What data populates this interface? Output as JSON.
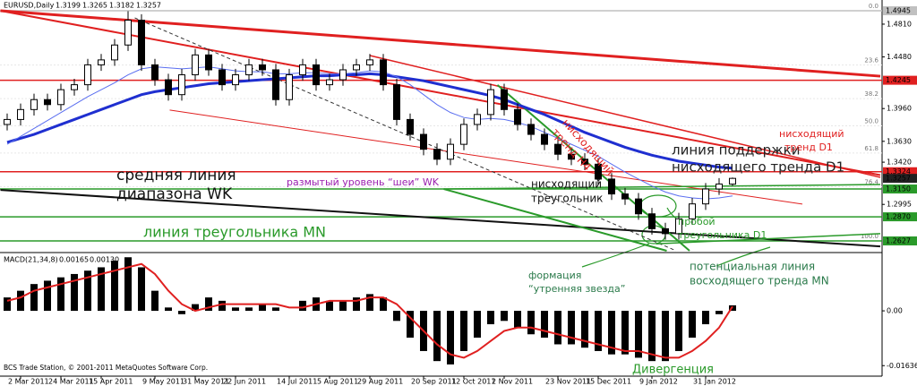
{
  "chart_data": {
    "type": "candlestick",
    "symbol": "EURUSD,Daily",
    "categories": [
      null,
      "2 Mar 2011",
      null,
      null,
      "24 Mar 2011",
      null,
      null,
      "15 Apr 2011",
      null,
      null,
      null,
      "9 May 2011",
      null,
      null,
      "31 May 2011",
      null,
      null,
      "22 Jun 2011",
      null,
      null,
      null,
      "14 Jul 2011",
      null,
      null,
      "5 Aug 2011",
      null,
      null,
      "29 Aug 2011",
      null,
      null,
      null,
      "20 Sep 2011",
      null,
      null,
      "12 Oct 2011",
      null,
      null,
      "2 Nov 2011",
      null,
      null,
      null,
      "23 Nov 2011",
      null,
      null,
      "15 Dec 2011",
      null,
      null,
      null,
      "9 Jan 2012",
      null,
      null,
      null,
      "31 Jan 2012",
      null,
      null
    ],
    "open": [
      1.38,
      1.385,
      1.395,
      1.405,
      1.4,
      1.415,
      1.42,
      1.44,
      1.445,
      1.46,
      1.485,
      1.44,
      1.425,
      1.41,
      1.43,
      1.45,
      1.435,
      1.42,
      1.43,
      1.44,
      1.435,
      1.405,
      1.43,
      1.44,
      1.42,
      1.425,
      1.435,
      1.44,
      1.445,
      1.42,
      1.385,
      1.37,
      1.355,
      1.345,
      1.36,
      1.38,
      1.39,
      1.415,
      1.395,
      1.38,
      1.37,
      1.36,
      1.35,
      1.345,
      1.34,
      1.325,
      1.31,
      1.305,
      1.29,
      1.275,
      1.27,
      1.285,
      1.3,
      1.315,
      1.3199
    ],
    "high": [
      1.391,
      1.401,
      1.411,
      1.411,
      1.421,
      1.426,
      1.446,
      1.451,
      1.466,
      1.494,
      1.491,
      1.446,
      1.431,
      1.436,
      1.456,
      1.456,
      1.441,
      1.436,
      1.446,
      1.446,
      1.441,
      1.436,
      1.446,
      1.446,
      1.431,
      1.441,
      1.446,
      1.451,
      1.451,
      1.426,
      1.391,
      1.376,
      1.361,
      1.366,
      1.386,
      1.396,
      1.421,
      1.421,
      1.401,
      1.386,
      1.376,
      1.366,
      1.356,
      1.351,
      1.346,
      1.331,
      1.316,
      1.311,
      1.296,
      1.281,
      1.291,
      1.306,
      1.321,
      1.326,
      1.3265
    ],
    "low": [
      1.374,
      1.379,
      1.389,
      1.394,
      1.394,
      1.409,
      1.414,
      1.434,
      1.439,
      1.454,
      1.434,
      1.419,
      1.404,
      1.404,
      1.424,
      1.429,
      1.414,
      1.414,
      1.424,
      1.429,
      1.399,
      1.399,
      1.424,
      1.414,
      1.414,
      1.419,
      1.429,
      1.434,
      1.414,
      1.379,
      1.364,
      1.349,
      1.339,
      1.339,
      1.354,
      1.374,
      1.384,
      1.389,
      1.374,
      1.364,
      1.354,
      1.344,
      1.339,
      1.334,
      1.319,
      1.304,
      1.299,
      1.284,
      1.269,
      1.264,
      1.264,
      1.279,
      1.294,
      1.309,
      1.3182
    ],
    "close": [
      1.385,
      1.395,
      1.405,
      1.4,
      1.415,
      1.42,
      1.44,
      1.445,
      1.46,
      1.485,
      1.44,
      1.425,
      1.41,
      1.43,
      1.45,
      1.435,
      1.42,
      1.43,
      1.44,
      1.435,
      1.405,
      1.43,
      1.44,
      1.42,
      1.425,
      1.435,
      1.44,
      1.445,
      1.42,
      1.385,
      1.37,
      1.355,
      1.345,
      1.36,
      1.38,
      1.39,
      1.415,
      1.395,
      1.38,
      1.37,
      1.36,
      1.35,
      1.345,
      1.34,
      1.325,
      1.31,
      1.305,
      1.29,
      1.275,
      1.27,
      1.285,
      1.3,
      1.315,
      1.32,
      1.3257
    ],
    "series": [
      {
        "color": "#1f2fd0",
        "width": 3,
        "values": [
          1.362,
          1.366,
          1.37,
          1.375,
          1.38,
          1.385,
          1.39,
          1.395,
          1.4,
          1.405,
          1.41,
          1.413,
          1.415,
          1.417,
          1.419,
          1.421,
          1.422,
          1.423,
          1.424,
          1.425,
          1.426,
          1.427,
          1.428,
          1.429,
          1.429,
          1.43,
          1.43,
          1.431,
          1.43,
          1.428,
          1.426,
          1.424,
          1.421,
          1.418,
          1.415,
          1.412,
          1.409,
          1.405,
          1.4,
          1.395,
          1.39,
          1.384,
          1.378,
          1.372,
          1.367,
          1.362,
          1.357,
          1.353,
          1.349,
          1.346,
          1.343,
          1.341,
          1.339,
          1.337,
          1.336
        ]
      },
      {
        "color": "#5a6ef0",
        "width": 1,
        "values": [
          1.36,
          1.368,
          1.376,
          1.384,
          1.392,
          1.4,
          1.408,
          1.415,
          1.422,
          1.43,
          1.436,
          1.438,
          1.437,
          1.436,
          1.437,
          1.438,
          1.436,
          1.434,
          1.433,
          1.433,
          1.431,
          1.431,
          1.432,
          1.432,
          1.431,
          1.431,
          1.432,
          1.434,
          1.433,
          1.428,
          1.42,
          1.41,
          1.4,
          1.392,
          1.387,
          1.385,
          1.386,
          1.385,
          1.382,
          1.378,
          1.372,
          1.366,
          1.36,
          1.354,
          1.348,
          1.34,
          1.332,
          1.325,
          1.318,
          1.312,
          1.308,
          1.306,
          1.305,
          1.306,
          1.308
        ]
      }
    ],
    "ylim": [
      1.2528,
      1.4981
    ],
    "yticks": [
      {
        "value": 1.481,
        "label": "1.4810"
      },
      {
        "value": 1.448,
        "label": "1.4480"
      },
      {
        "value": 1.396,
        "label": "1.3960"
      },
      {
        "value": 1.363,
        "label": "1.3630"
      },
      {
        "value": 1.342,
        "label": "1.3420"
      },
      1.2995
    ],
    "levels": [
      {
        "value": 1.4945,
        "color": "#c0c0c0",
        "line": true
      },
      {
        "value": 1.4245,
        "color": "#e02020",
        "line": true
      },
      {
        "value": 1.3324,
        "color": "#e02020",
        "line": true
      },
      {
        "value": 1.3257,
        "color": "#222222",
        "line": false
      },
      {
        "value": 1.315,
        "label": "1.3150",
        "color": "#2a9a2a",
        "line": true
      },
      {
        "value": 1.287,
        "label": "1.2870",
        "color": "#2a9a2a",
        "line": true
      },
      {
        "value": 1.2627,
        "color": "#2a9a2a",
        "line": true
      }
    ],
    "fibo_range": [
      1.4945,
      1.2627
    ],
    "fibo": [
      {
        "value": 0,
        "label": "0.0"
      },
      23.6,
      38.2,
      {
        "value": 50,
        "label": "50.0"
      },
      61.8,
      76.4,
      {
        "value": 100,
        "label": "100.0"
      }
    ],
    "trendlines": [
      {
        "color": "#e02020",
        "width": 3,
        "x": [
          -0.5,
          65
        ],
        "y": [
          1.4945,
          1.4286
        ]
      },
      {
        "color": "#e02020",
        "width": 2,
        "x": [
          -0.5,
          65
        ],
        "y": [
          1.4945,
          1.329
        ]
      },
      {
        "color": "#e02020",
        "width": 1.5,
        "x": [
          27,
          65
        ],
        "y": [
          1.4494,
          1.3267
        ]
      },
      {
        "color": "#e02020",
        "width": 1,
        "x": [
          12.1,
          59.2
        ],
        "y": [
          1.3945,
          1.2998
        ]
      },
      {
        "color": "#111111",
        "width": 2,
        "x": [
          -0.5,
          65
        ],
        "y": [
          1.314,
          1.2572
        ]
      },
      {
        "color": "#333333",
        "width": 1,
        "dash": true,
        "x": [
          9.5,
          49.8
        ],
        "y": [
          1.4873,
          1.2528
        ]
      },
      {
        "color": "#2a9a2a",
        "width": 2,
        "x": [
          36.5,
          50.8
        ],
        "y": [
          1.4198,
          1.2528
        ]
      },
      {
        "color": "#2a9a2a",
        "width": 2,
        "x": [
          32.5,
          49.1
        ],
        "y": [
          1.315,
          1.2528
        ]
      },
      {
        "color": "#2a9a2a",
        "width": 1.5,
        "x": [
          32.5,
          65
        ],
        "y": [
          1.315,
          1.3195
        ]
      },
      {
        "color": "#2a9a2a",
        "width": 1.5,
        "x": [
          48.3,
          65
        ],
        "y": [
          1.2598,
          1.27
        ]
      }
    ],
    "annotations": [
      {
        "lines": [
          "средняя линия",
          "диапазона WK"
        ],
        "color": "#111111"
      },
      {
        "lines": [
          "размытый уровень “шеи” WK"
        ],
        "color": "#9b20b0"
      },
      {
        "lines": [
          "нисходящий",
          "треугольник"
        ],
        "color": "#111111"
      },
      {
        "lines": [
          "нисходящий",
          "тренд H4"
        ],
        "color": "#e02020"
      },
      {
        "lines": [
          "линия поддержки",
          "нисходящего тренда D1"
        ],
        "color": "#222222"
      },
      {
        "lines": [
          "нисходящий",
          "тренд D1"
        ],
        "color": "#e02020"
      },
      {
        "lines": [
          "линия треугольника MN"
        ],
        "color": "#2a9a2a"
      },
      {
        "lines": [
          "пробой",
          "треугольника D1"
        ],
        "color": "#2a9a2a"
      },
      {
        "lines": [
          "формация",
          "“утренняя звезда”"
        ],
        "color": "#2a7a4a"
      },
      {
        "lines": [
          "потенциальная линия",
          "восходящего тренда MN"
        ],
        "color": "#2a7a4a"
      },
      {
        "lines": [
          "Дивергенция"
        ],
        "color": "#2a9a2a"
      }
    ],
    "macd": {
      "title": "MACD(21,34,8)",
      "current_labels": [
        "0.00165",
        "0.00130"
      ],
      "hist": [
        0.004,
        0.006,
        0.008,
        0.009,
        0.01,
        0.011,
        0.012,
        0.013,
        0.015,
        0.016,
        0.013,
        0.006,
        0.001,
        -0.001,
        0.002,
        0.004,
        0.003,
        0.001,
        0.001,
        0.002,
        0.001,
        0.0,
        0.003,
        0.004,
        0.003,
        0.003,
        0.004,
        0.005,
        0.004,
        -0.003,
        -0.008,
        -0.012,
        -0.015,
        -0.016,
        -0.012,
        -0.008,
        -0.004,
        -0.003,
        -0.005,
        -0.007,
        -0.008,
        -0.01,
        -0.01,
        -0.011,
        -0.012,
        -0.013,
        -0.013,
        -0.014,
        -0.015,
        -0.015,
        -0.012,
        -0.008,
        -0.004,
        -0.001,
        0.00165
      ],
      "signal": [
        0.003,
        0.004,
        0.006,
        0.007,
        0.008,
        0.009,
        0.01,
        0.011,
        0.012,
        0.013,
        0.014,
        0.011,
        0.006,
        0.002,
        0.0,
        0.001,
        0.002,
        0.002,
        0.002,
        0.002,
        0.002,
        0.001,
        0.001,
        0.002,
        0.003,
        0.003,
        0.003,
        0.004,
        0.004,
        0.002,
        -0.002,
        -0.006,
        -0.01,
        -0.013,
        -0.014,
        -0.012,
        -0.009,
        -0.006,
        -0.005,
        -0.005,
        -0.006,
        -0.007,
        -0.008,
        -0.009,
        -0.01,
        -0.011,
        -0.012,
        -0.012,
        -0.013,
        -0.014,
        -0.014,
        -0.012,
        -0.009,
        -0.005,
        0.0013
      ],
      "hist_color": "#000000",
      "signal_color": "#e02020",
      "ylim": [
        -0.0195,
        0.0166
      ],
      "yticks": [
        {
          "value": 0,
          "label": "0.00"
        },
        -0.01636
      ]
    },
    "copyright": "BCS Trade Station, © 2001-2011 MetaQuotes Software Corp."
  }
}
